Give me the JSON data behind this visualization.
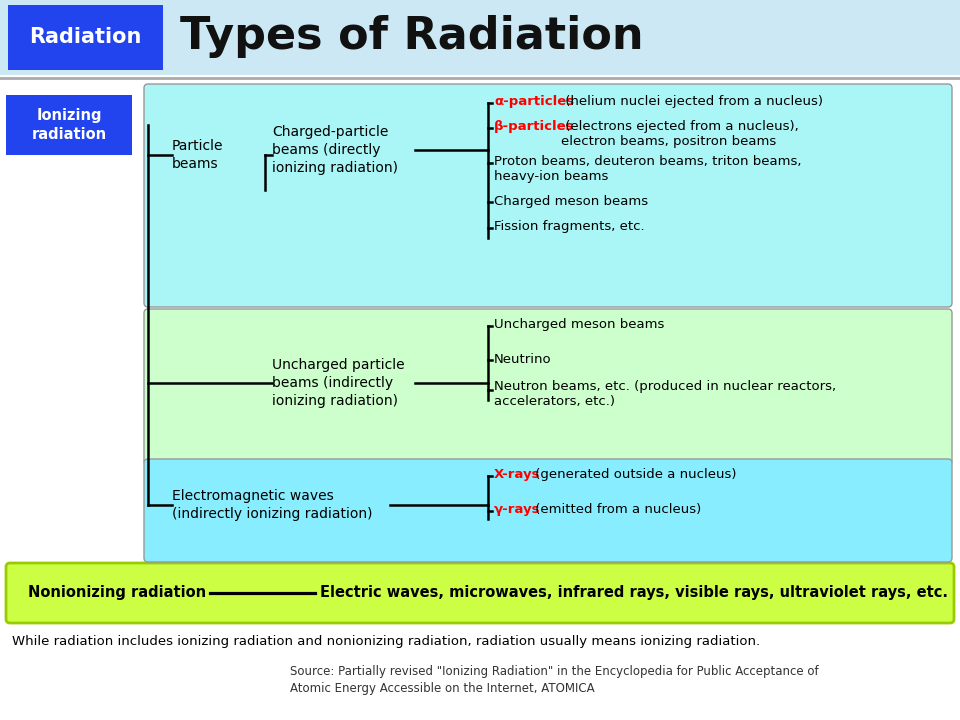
{
  "title": "Types of Radiation",
  "title_label": "Radiation",
  "header_bg": "#cce8f4",
  "title_label_bg": "#2244ee",
  "title_label_color": "#ffffff",
  "title_fontsize": 32,
  "title_label_fontsize": 15,
  "ionizing_label": "Ionizing\nradiation",
  "ionizing_bg": "#2244ee",
  "ionizing_color": "#ffffff",
  "box1_bg": "#aaf5f5",
  "box2_bg": "#ccffcc",
  "box3_bg": "#88eeff",
  "box4_bg": "#ccff44",
  "particle_beams": "Particle\nbeams",
  "charged_particle": "Charged-particle\nbeams (directly\nionizing radiation)",
  "uncharged_particle": "Uncharged particle\nbeams (indirectly\nionizing radiation)",
  "electromagnetic": "Electromagnetic waves\n(indirectly ionizing radiation)",
  "nonionizing": "Nonionizing radiation",
  "nonionizing_content": "Electric waves, microwaves, infrared rays, visible rays, ultraviolet rays, etc.",
  "charged_items": [
    {
      "text": "α-particles (helium nuclei ejected from a nucleus)",
      "red_prefix": "α-particles",
      "red": true
    },
    {
      "text": "β-particles (electrons ejected from a nucleus),\nelectron beams, positron beams",
      "red_prefix": "β-particles",
      "red": true
    },
    {
      "text": "Proton beams, deuteron beams, triton beams,\nheavy-ion beams",
      "red_prefix": null,
      "red": false
    },
    {
      "text": "Charged meson beams",
      "red_prefix": null,
      "red": false
    },
    {
      "text": "Fission fragments, etc.",
      "red_prefix": null,
      "red": false
    }
  ],
  "uncharged_items": [
    {
      "text": "Uncharged meson beams",
      "red": false
    },
    {
      "text": "Neutrino",
      "red": false
    },
    {
      "text": "Neutron beams, etc. (produced in nuclear reactors,\naccelerators, etc.)",
      "red": false
    }
  ],
  "em_items": [
    {
      "text": "X-rays (generated outside a nucleus)",
      "red_prefix": "X-rays",
      "red": true
    },
    {
      "text": "γ-rays (emitted from a nucleus)",
      "red_prefix": "γ-rays",
      "red": true
    }
  ],
  "footer_text": "While radiation includes ionizing radiation and nonionizing radiation, radiation usually means ionizing radiation.",
  "source_text": "Source: Partially revised \"Ionizing Radiation\" in the Encyclopedia for Public Acceptance of\nAtomic Energy Accessible on the Internet, ATOMICA"
}
